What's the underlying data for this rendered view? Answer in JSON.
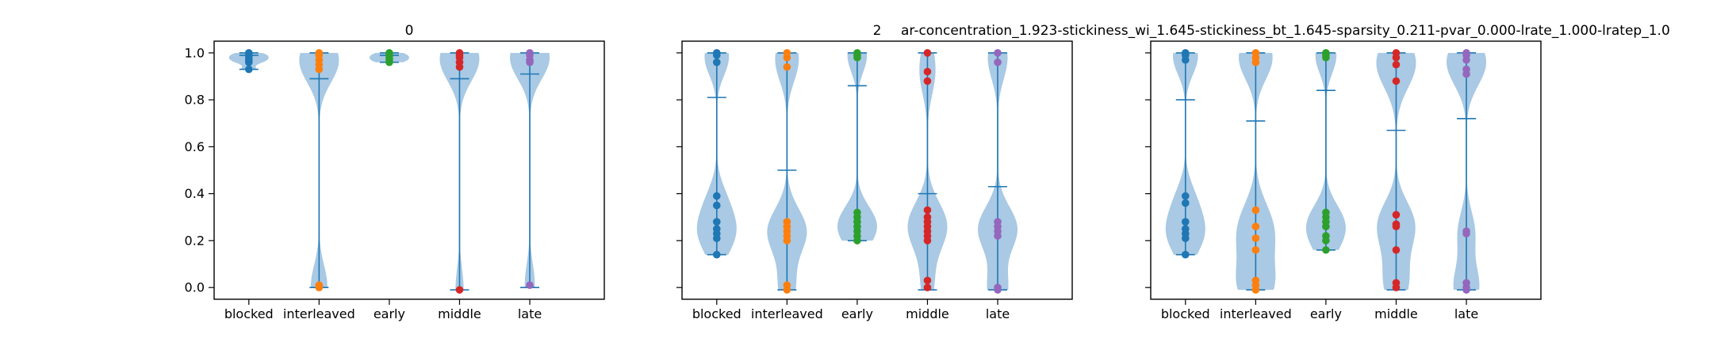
{
  "colors": {
    "violin_fill": "#a9c9e4",
    "stat_line": "#1f77b4",
    "blocked": "#1f77b4",
    "interleaved": "#ff7f0e",
    "early": "#2ca02c",
    "middle": "#d62728",
    "late": "#9467bd"
  },
  "title_overlay": "ar-concentration_1.923-stickiness_wi_1.645-stickiness_bt_1.645-sparsity_0.211-pvar_0.000-lrate_1.000-lratep_1.0",
  "chart_data": [
    {
      "type": "violin",
      "title": "0",
      "categories": [
        "blocked",
        "interleaved",
        "early",
        "middle",
        "late"
      ],
      "yticks": [
        "0.0",
        "0.2",
        "0.4",
        "0.6",
        "0.8",
        "1.0"
      ],
      "ylim": [
        -0.05,
        1.05
      ],
      "series": [
        {
          "category": "blocked",
          "min": 0.93,
          "max": 1.0,
          "mean": 0.99,
          "points": [
            1.0,
            0.99,
            0.98,
            0.97,
            0.96,
            0.93
          ]
        },
        {
          "category": "interleaved",
          "min": 0.0,
          "max": 1.0,
          "mean": 0.89,
          "points": [
            1.0,
            0.99,
            0.97,
            0.95,
            0.93,
            0.01,
            0.0
          ]
        },
        {
          "category": "early",
          "min": 0.96,
          "max": 1.0,
          "mean": 0.99,
          "points": [
            1.0,
            0.99,
            0.98,
            0.97,
            0.96
          ]
        },
        {
          "category": "middle",
          "min": -0.01,
          "max": 1.0,
          "mean": 0.89,
          "points": [
            1.0,
            0.99,
            0.98,
            0.96,
            0.94,
            -0.01
          ]
        },
        {
          "category": "late",
          "min": 0.0,
          "max": 1.0,
          "mean": 0.91,
          "points": [
            1.0,
            0.99,
            0.97,
            0.96,
            0.01
          ]
        }
      ]
    },
    {
      "type": "violin",
      "title": "2",
      "categories": [
        "blocked",
        "interleaved",
        "early",
        "middle",
        "late"
      ],
      "yticks": [
        "0.0",
        "0.2",
        "0.4",
        "0.6",
        "0.8",
        "1.0"
      ],
      "ylim": [
        -0.05,
        1.05
      ],
      "series": [
        {
          "category": "blocked",
          "min": 0.14,
          "max": 1.0,
          "mean": 0.81,
          "points": [
            1.0,
            0.99,
            0.96,
            0.39,
            0.35,
            0.28,
            0.25,
            0.23,
            0.21,
            0.14
          ]
        },
        {
          "category": "interleaved",
          "min": -0.01,
          "max": 1.0,
          "mean": 0.5,
          "points": [
            1.0,
            0.98,
            0.94,
            0.28,
            0.26,
            0.24,
            0.22,
            0.2,
            0.01,
            -0.01
          ]
        },
        {
          "category": "early",
          "min": 0.2,
          "max": 1.0,
          "mean": 0.86,
          "points": [
            1.0,
            0.99,
            0.98,
            0.32,
            0.3,
            0.28,
            0.26,
            0.24,
            0.22,
            0.2
          ]
        },
        {
          "category": "middle",
          "min": -0.01,
          "max": 1.0,
          "mean": 0.4,
          "points": [
            1.0,
            0.92,
            0.88,
            0.33,
            0.3,
            0.28,
            0.26,
            0.24,
            0.22,
            0.2,
            0.03,
            0.0
          ]
        },
        {
          "category": "late",
          "min": -0.01,
          "max": 1.0,
          "mean": 0.43,
          "points": [
            1.0,
            0.96,
            0.28,
            0.26,
            0.24,
            0.22,
            0.0,
            -0.01
          ]
        }
      ]
    },
    {
      "type": "violin",
      "title": "",
      "categories": [
        "blocked",
        "interleaved",
        "early",
        "middle",
        "late"
      ],
      "yticks": [
        "0.0",
        "0.2",
        "0.4",
        "0.6",
        "0.8",
        "1.0"
      ],
      "ylim": [
        -0.05,
        1.05
      ],
      "series": [
        {
          "category": "blocked",
          "min": 0.14,
          "max": 1.0,
          "mean": 0.8,
          "points": [
            1.0,
            0.99,
            0.97,
            0.39,
            0.36,
            0.28,
            0.25,
            0.23,
            0.21,
            0.14
          ]
        },
        {
          "category": "interleaved",
          "min": -0.01,
          "max": 1.0,
          "mean": 0.71,
          "points": [
            1.0,
            0.98,
            0.96,
            0.33,
            0.26,
            0.21,
            0.16,
            0.03,
            0.01,
            -0.01
          ]
        },
        {
          "category": "early",
          "min": 0.16,
          "max": 1.0,
          "mean": 0.84,
          "points": [
            1.0,
            0.99,
            0.98,
            0.32,
            0.3,
            0.28,
            0.26,
            0.22,
            0.2,
            0.16
          ]
        },
        {
          "category": "middle",
          "min": -0.01,
          "max": 1.0,
          "mean": 0.67,
          "points": [
            1.0,
            0.98,
            0.95,
            0.88,
            0.31,
            0.27,
            0.26,
            0.16,
            0.02,
            0.0
          ]
        },
        {
          "category": "late",
          "min": -0.01,
          "max": 1.0,
          "mean": 0.72,
          "points": [
            1.0,
            0.99,
            0.97,
            0.93,
            0.91,
            0.24,
            0.23,
            0.02,
            0.0,
            -0.01
          ]
        }
      ]
    }
  ]
}
